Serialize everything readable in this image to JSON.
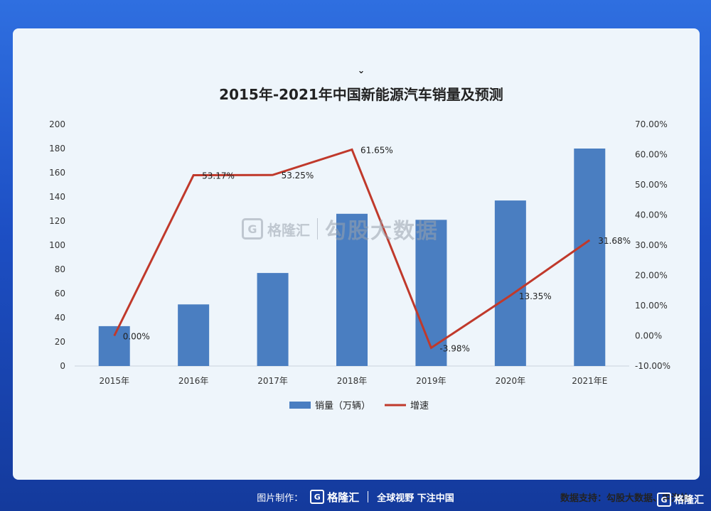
{
  "chart_data": {
    "type": "bar+line",
    "title": "2015年-2021年中国新能源汽车销量及预测",
    "title_mark": "ˇ",
    "categories": [
      "2015年",
      "2016年",
      "2017年",
      "2018年",
      "2019年",
      "2020年",
      "2021年E"
    ],
    "series": [
      {
        "name": "销量（万辆）",
        "type": "bar",
        "axis": "left",
        "color": "#4a7ec1",
        "values": [
          33,
          51,
          77,
          126,
          121,
          137,
          180
        ]
      },
      {
        "name": "增速",
        "type": "line",
        "axis": "right",
        "color": "#c0392b",
        "values": [
          0.0,
          53.17,
          53.25,
          61.65,
          -3.98,
          13.35,
          31.68
        ],
        "labels": [
          "0.00%",
          "53.17%",
          "53.25%",
          "61.65%",
          "-3.98%",
          "13.35%",
          "31.68%"
        ]
      }
    ],
    "y_left": {
      "min": 0,
      "max": 200,
      "ticks": [
        "0",
        "20",
        "40",
        "60",
        "80",
        "100",
        "120",
        "140",
        "160",
        "180",
        "200"
      ]
    },
    "y_right": {
      "min": -10,
      "max": 70,
      "ticks": [
        "-10.00%",
        "0.00%",
        "10.00%",
        "20.00%",
        "30.00%",
        "40.00%",
        "50.00%",
        "60.00%",
        "70.00%"
      ]
    },
    "legend_position": "bottom"
  },
  "watermark": {
    "logo_letter": "G",
    "brand": "格隆汇",
    "sub": "勾股大数据"
  },
  "source": "数据支持：勾股大数据、中汽协",
  "footer": {
    "made_by": "图片制作：",
    "logo_letter": "G",
    "brand": "格隆汇",
    "slogan": "全球视野 下注中国"
  },
  "corner": {
    "logo_letter": "G",
    "brand": "格隆汇"
  }
}
